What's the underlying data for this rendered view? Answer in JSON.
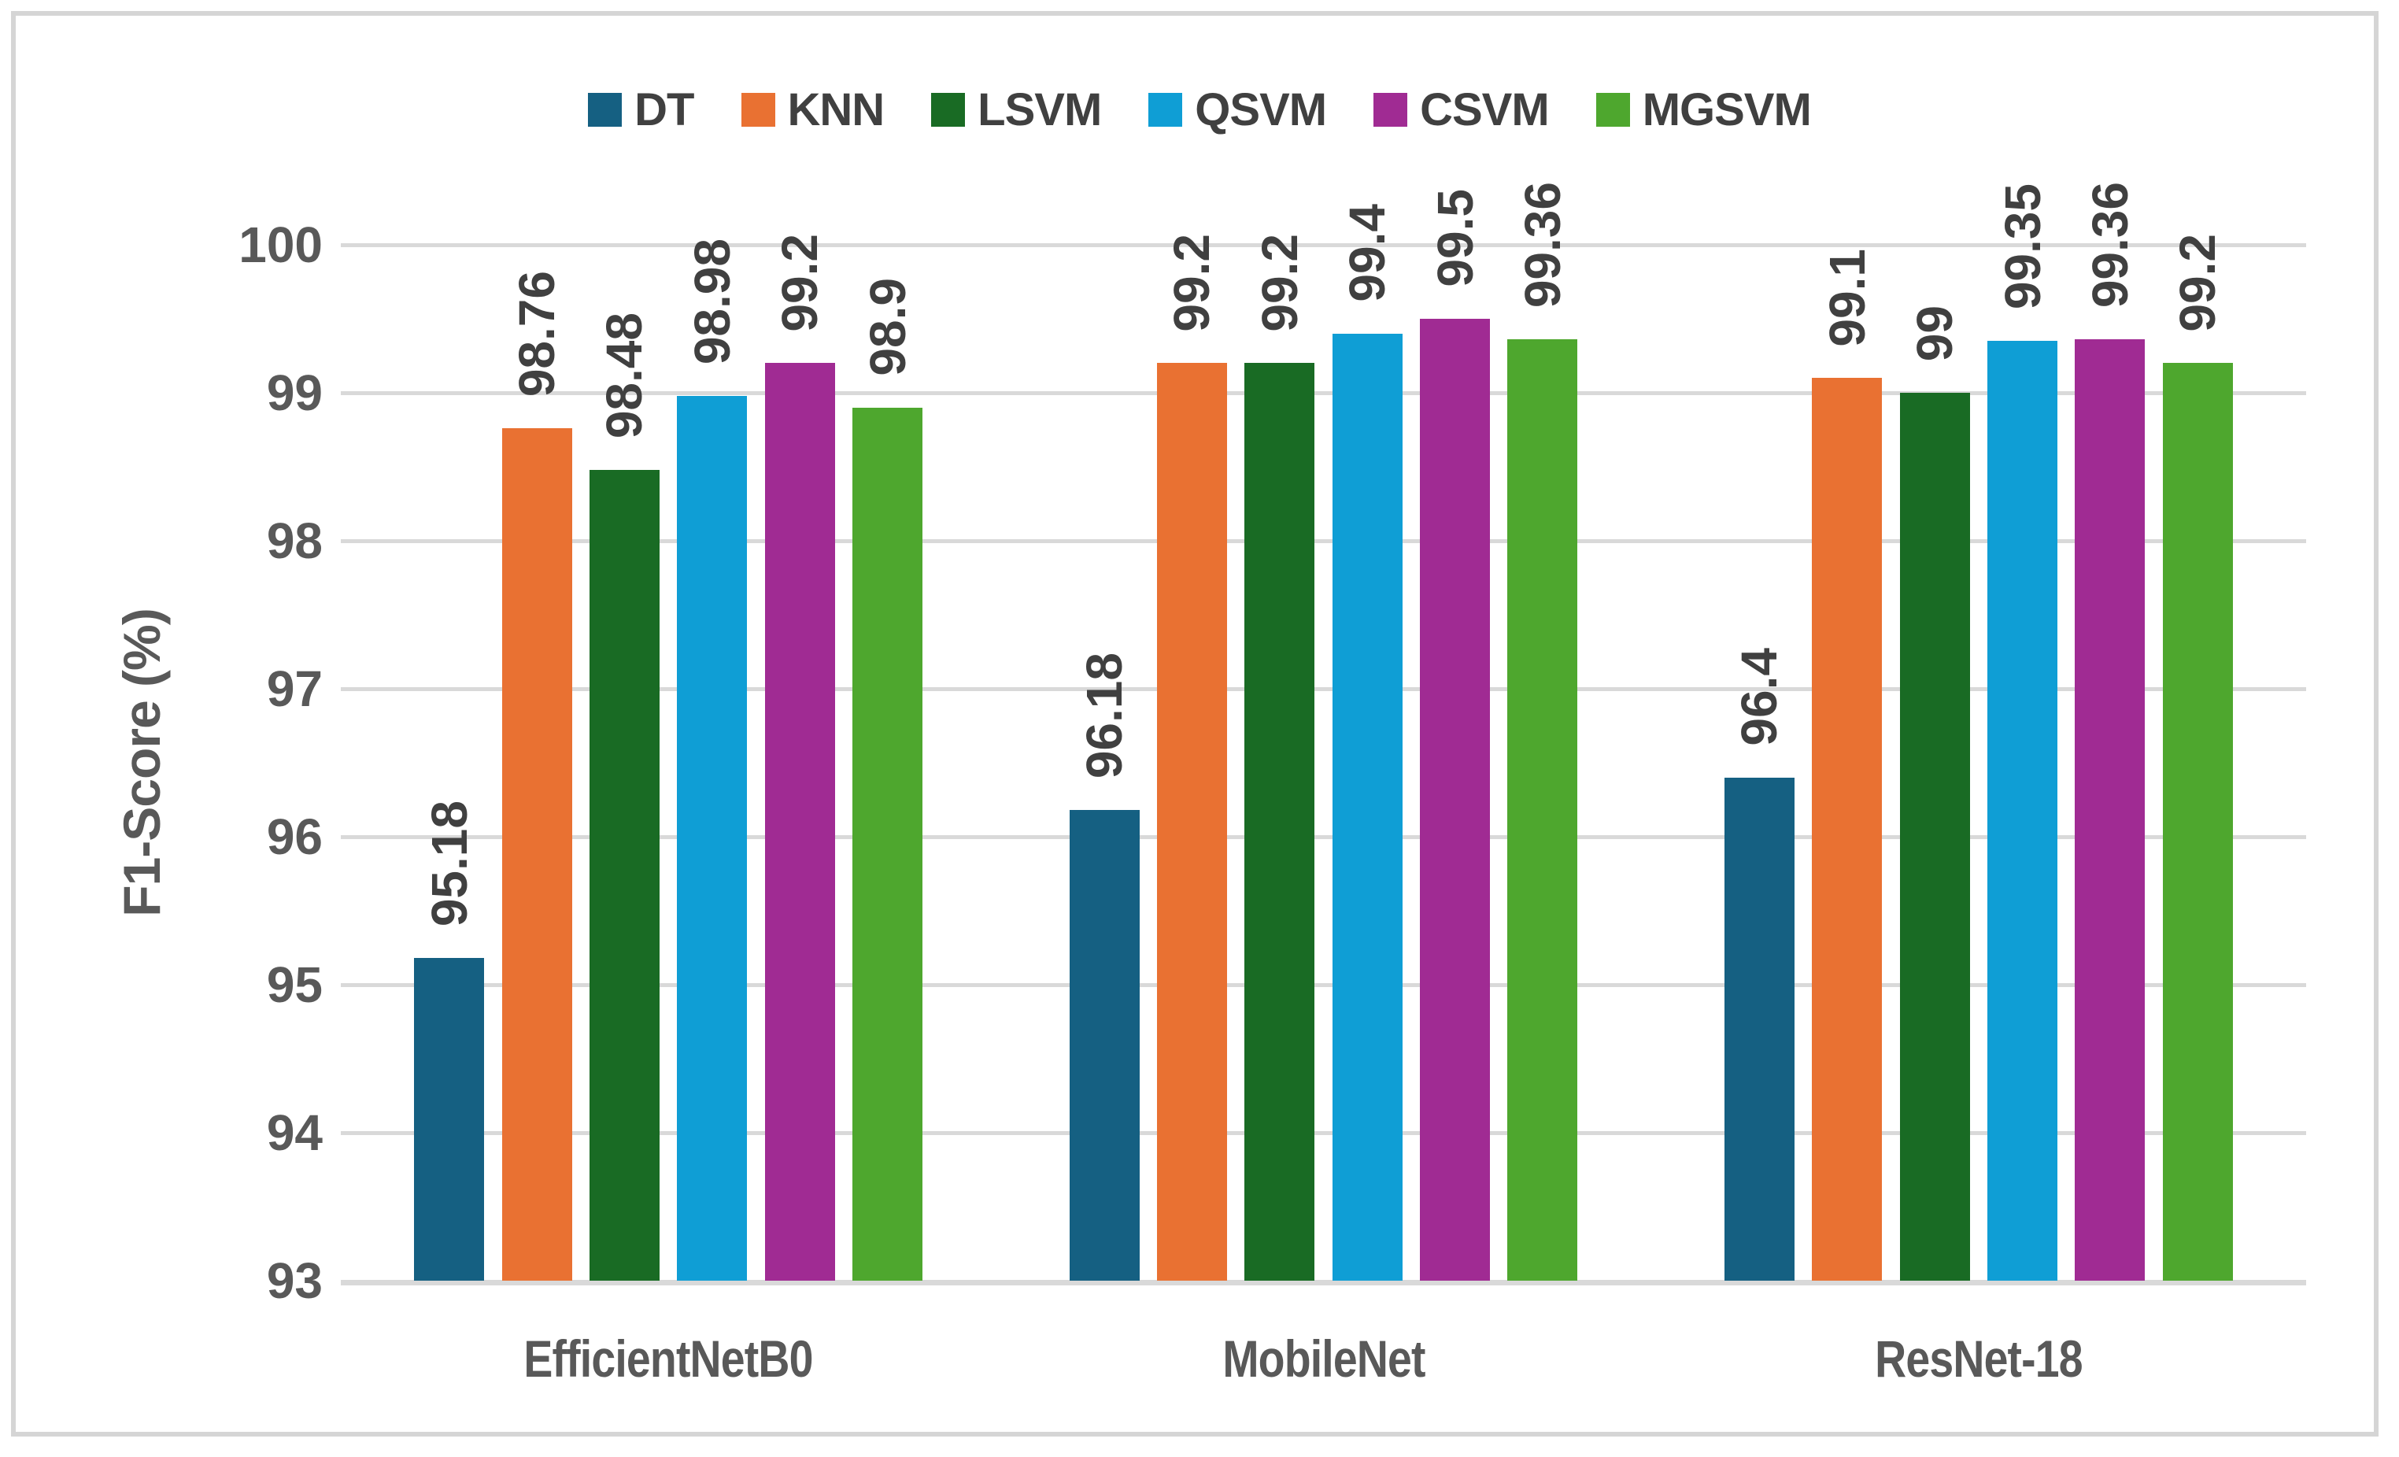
{
  "chart_data": {
    "type": "bar",
    "title": "",
    "ylabel": "F1-Score (%)",
    "xlabel": "",
    "ylim": [
      93,
      100
    ],
    "yticks": [
      93,
      94,
      95,
      96,
      97,
      98,
      99,
      100
    ],
    "grid": true,
    "legend_position": "top",
    "categories": [
      "EfficientNetB0",
      "MobileNet",
      "ResNet-18"
    ],
    "series": [
      {
        "name": "DT",
        "color": "#156082",
        "values": [
          95.18,
          96.18,
          96.4
        ]
      },
      {
        "name": "KNN",
        "color": "#E97132",
        "values": [
          98.76,
          99.2,
          99.1
        ]
      },
      {
        "name": "LSVM",
        "color": "#196B24",
        "values": [
          98.48,
          99.2,
          99
        ]
      },
      {
        "name": "QSVM",
        "color": "#0F9ED5",
        "values": [
          98.98,
          99.4,
          99.35
        ]
      },
      {
        "name": "CSVM",
        "color": "#A02B93",
        "values": [
          99.2,
          99.5,
          99.36
        ]
      },
      {
        "name": "MGSVM",
        "color": "#4EA72E",
        "values": [
          98.9,
          99.36,
          99.2
        ]
      }
    ]
  },
  "styles": {
    "gridline_color": "#D9D9D9",
    "axis_line_color": "#D9D9D9",
    "frame_border_color": "#D5D5D5",
    "axis_text_color": "#595959",
    "data_label_color": "#404040",
    "legend_text_color": "#404040",
    "background": "#FFFFFF"
  }
}
